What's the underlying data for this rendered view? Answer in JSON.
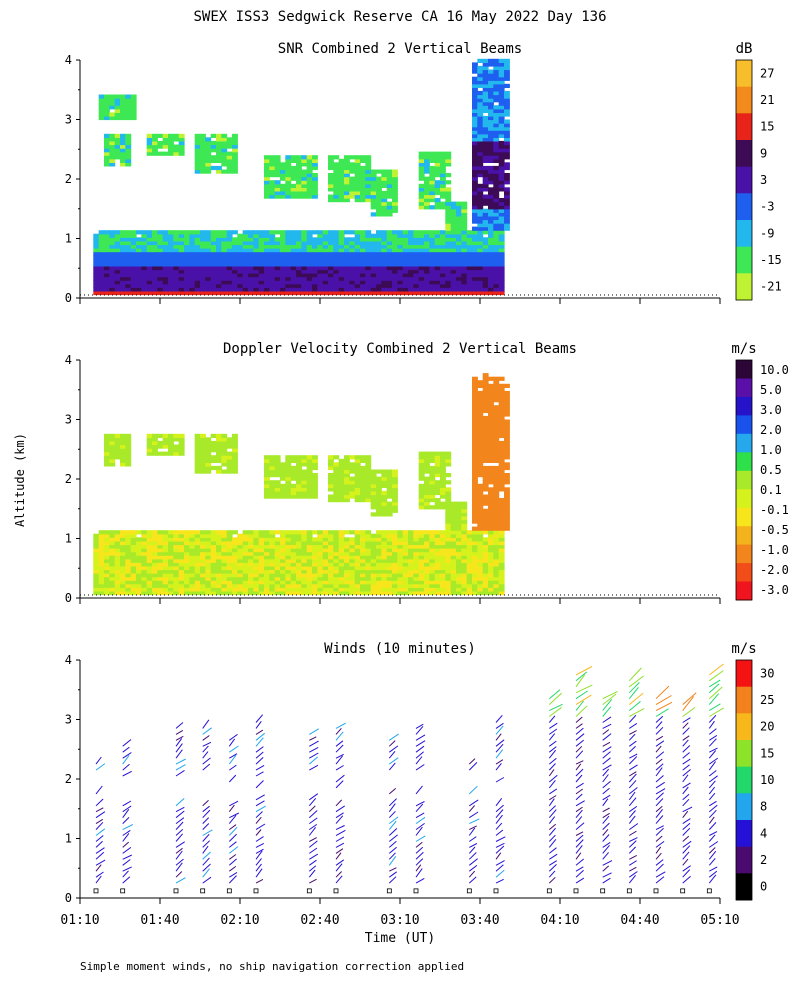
{
  "figure": {
    "title": "SWEX ISS3 Sedgwick Reserve CA  16 May 2022 Day 136",
    "ylabel": "Altitude (km)",
    "xlabel": "Time (UT)",
    "footnote": "Simple moment winds, no ship navigation correction applied"
  },
  "colors": {
    "snr_scale": [
      "#bff233",
      "#3ee855",
      "#22b8ee",
      "#1f5ff0",
      "#4a11a8",
      "#3d0b56",
      "#e8231a",
      "#f28a1c",
      "#f7bd2a"
    ],
    "vel_scale": [
      "#f0141e",
      "#f24d18",
      "#f2861c",
      "#f4b21c",
      "#f7e61c",
      "#d6f21c",
      "#a8ea2a",
      "#2ee04a",
      "#25a8ec",
      "#1a52ee",
      "#2612c8",
      "#5a0fa8",
      "#2b0636"
    ],
    "wind_scale": [
      "#000000",
      "#4a0a70",
      "#2510d8",
      "#22a6ee",
      "#23d86a",
      "#8de22a",
      "#f8b81c",
      "#f4821c",
      "#f51212"
    ]
  },
  "chart_data": [
    {
      "type": "heatmap",
      "title": "SNR Combined 2 Vertical Beams",
      "unit": "dB",
      "colorbar_labels": [
        "27",
        "21",
        "15",
        "9",
        "3",
        "-3",
        "-9",
        "-15",
        "-21"
      ],
      "colorbar_values": [
        27,
        21,
        15,
        9,
        3,
        -3,
        -9,
        -15,
        -21
      ],
      "ylim": [
        0,
        4
      ],
      "y_ticks": [
        "0",
        "1",
        "2",
        "3",
        "4"
      ],
      "xlim": [
        "01:10",
        "05:10"
      ],
      "description": "Strong SNR (9 to 21 dB) below 0.5 km all day; -21 to -3 dB layer up to ~1.1 km; sparse clouds 2-3 km before 03:50; after 03:50 deep echo to ~4 km with 3-15 dB band near 1.5-2.5 km"
    },
    {
      "type": "heatmap",
      "title": "Doppler Velocity Combined 2 Vertical Beams",
      "unit": "m/s",
      "colorbar_labels": [
        "10.0",
        "5.0",
        "3.0",
        "2.0",
        "1.0",
        "0.5",
        "0.1",
        "-0.1",
        "-0.5",
        "-1.0",
        "-2.0",
        "-3.0"
      ],
      "colorbar_values": [
        10.0,
        5.0,
        3.0,
        2.0,
        1.0,
        0.5,
        0.1,
        -0.1,
        -0.5,
        -1.0,
        -2.0,
        -3.0
      ],
      "ylim": [
        0,
        4
      ],
      "y_ticks": [
        "0",
        "1",
        "2",
        "3",
        "4"
      ],
      "xlim": [
        "01:10",
        "05:10"
      ],
      "description": "Near-zero velocities (-0.1 to 0.1 m/s) below 1.1 km; after 03:50 mostly -0.5 to -2.0 m/s up to ~3.5 km"
    },
    {
      "type": "scatter",
      "title": "Winds (10 minutes)",
      "unit": "m/s",
      "colorbar_labels": [
        "30",
        "25",
        "20",
        "15",
        "10",
        "8",
        "4",
        "2",
        "0"
      ],
      "colorbar_values": [
        30,
        25,
        20,
        15,
        10,
        8,
        4,
        2,
        0
      ],
      "ylim": [
        0,
        4
      ],
      "y_ticks": [
        "0",
        "1",
        "2",
        "3",
        "4"
      ],
      "x_ticks": [
        "01:10",
        "01:40",
        "02:10",
        "02:40",
        "03:10",
        "03:40",
        "04:10",
        "04:40",
        "05:10"
      ],
      "xlim": [
        "01:10",
        "05:10"
      ],
      "profile_times": [
        "01:16",
        "01:26",
        "01:46",
        "01:56",
        "02:06",
        "02:16",
        "02:36",
        "02:46",
        "03:06",
        "03:16",
        "03:36",
        "03:46",
        "04:06",
        "04:16",
        "04:26",
        "04:36",
        "04:46",
        "04:56",
        "05:06"
      ],
      "description": "Wind barbs mostly 2-8 m/s from the north-northwest; 10-20 m/s above 3 km after 04:00; 25-30 m/s near 3.5 km around 04:40-04:55"
    }
  ]
}
